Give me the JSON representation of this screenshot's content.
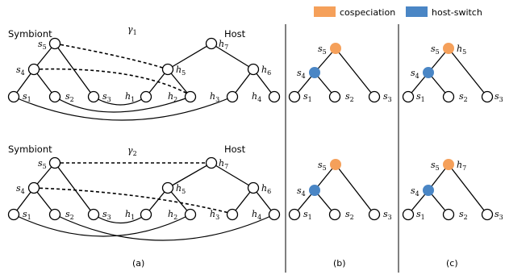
{
  "legend": {
    "items": [
      {
        "label": "cospeciation",
        "color": "#F5A05A"
      },
      {
        "label": "host-switch",
        "color": "#4A86C5"
      }
    ]
  },
  "panel_a": {
    "caption": "(a)",
    "top": {
      "symbiont_title": "Symbiont",
      "host_title": "Host",
      "gamma": {
        "base": "γ",
        "sub": "1"
      },
      "labels": {
        "s5": {
          "base": "s",
          "sub": "5"
        },
        "s4": {
          "base": "s",
          "sub": "4"
        },
        "s1": {
          "base": "s",
          "sub": "1"
        },
        "s2": {
          "base": "s",
          "sub": "2"
        },
        "s3": {
          "base": "s",
          "sub": "3"
        },
        "h7": {
          "base": "h",
          "sub": "7"
        },
        "h5": {
          "base": "h",
          "sub": "5"
        },
        "h6": {
          "base": "h",
          "sub": "6"
        },
        "h1": {
          "base": "h",
          "sub": "1"
        },
        "h2": {
          "base": "h",
          "sub": "2"
        },
        "h3": {
          "base": "h",
          "sub": "3"
        },
        "h4": {
          "base": "h",
          "sub": "4"
        }
      }
    },
    "bottom": {
      "symbiont_title": "Symbiont",
      "host_title": "Host",
      "gamma": {
        "base": "γ",
        "sub": "2"
      },
      "labels": {
        "s5": {
          "base": "s",
          "sub": "5"
        },
        "s4": {
          "base": "s",
          "sub": "4"
        },
        "s1": {
          "base": "s",
          "sub": "1"
        },
        "s2": {
          "base": "s",
          "sub": "2"
        },
        "s3": {
          "base": "s",
          "sub": "3"
        },
        "h7": {
          "base": "h",
          "sub": "7"
        },
        "h5": {
          "base": "h",
          "sub": "5"
        },
        "h6": {
          "base": "h",
          "sub": "6"
        },
        "h1": {
          "base": "h",
          "sub": "1"
        },
        "h2": {
          "base": "h",
          "sub": "2"
        },
        "h3": {
          "base": "h",
          "sub": "3"
        },
        "h4": {
          "base": "h",
          "sub": "4"
        }
      }
    }
  },
  "panel_b": {
    "caption": "(b)",
    "top": {
      "labels": {
        "s5": {
          "base": "s",
          "sub": "5"
        },
        "s4": {
          "base": "s",
          "sub": "4"
        },
        "s1": {
          "base": "s",
          "sub": "1"
        },
        "s2": {
          "base": "s",
          "sub": "2"
        },
        "s3": {
          "base": "s",
          "sub": "3"
        }
      }
    },
    "bottom": {
      "labels": {
        "s5": {
          "base": "s",
          "sub": "5"
        },
        "s4": {
          "base": "s",
          "sub": "4"
        },
        "s1": {
          "base": "s",
          "sub": "1"
        },
        "s2": {
          "base": "s",
          "sub": "2"
        },
        "s3": {
          "base": "s",
          "sub": "3"
        }
      }
    }
  },
  "panel_c": {
    "caption": "(c)",
    "top": {
      "labels": {
        "s5": {
          "base": "s",
          "sub": "5"
        },
        "h5": {
          "base": "h",
          "sub": "5"
        },
        "s4": {
          "base": "s",
          "sub": "4"
        },
        "s1": {
          "base": "s",
          "sub": "1"
        },
        "s2": {
          "base": "s",
          "sub": "2"
        },
        "s3": {
          "base": "s",
          "sub": "3"
        }
      }
    },
    "bottom": {
      "labels": {
        "s5": {
          "base": "s",
          "sub": "5"
        },
        "h7": {
          "base": "h",
          "sub": "7"
        },
        "s4": {
          "base": "s",
          "sub": "4"
        },
        "s1": {
          "base": "s",
          "sub": "1"
        },
        "s2": {
          "base": "s",
          "sub": "2"
        },
        "s3": {
          "base": "s",
          "sub": "3"
        }
      }
    }
  }
}
